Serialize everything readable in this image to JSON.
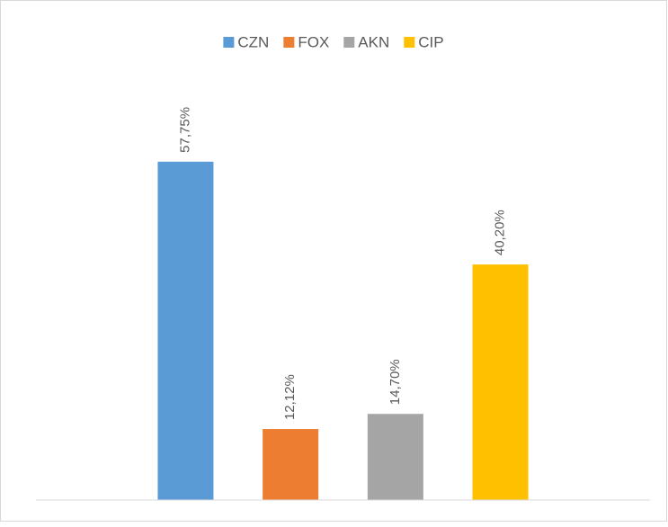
{
  "chart_data": {
    "type": "bar",
    "categories": [
      null
    ],
    "series": [
      {
        "name": "CZN",
        "color": "#5b9bd5",
        "values": [
          57.75
        ],
        "value_labels": [
          "57,75%"
        ]
      },
      {
        "name": "FOX",
        "color": "#ed7d31",
        "values": [
          12.12
        ],
        "value_labels": [
          "12,12%"
        ]
      },
      {
        "name": "AKN",
        "color": "#a5a5a5",
        "values": [
          14.7
        ],
        "value_labels": [
          "14,70%"
        ]
      },
      {
        "name": "CIP",
        "color": "#ffc000",
        "values": [
          40.2
        ],
        "value_labels": [
          "40,20%"
        ]
      }
    ],
    "ylim": [
      0,
      70
    ],
    "legend": "top"
  }
}
